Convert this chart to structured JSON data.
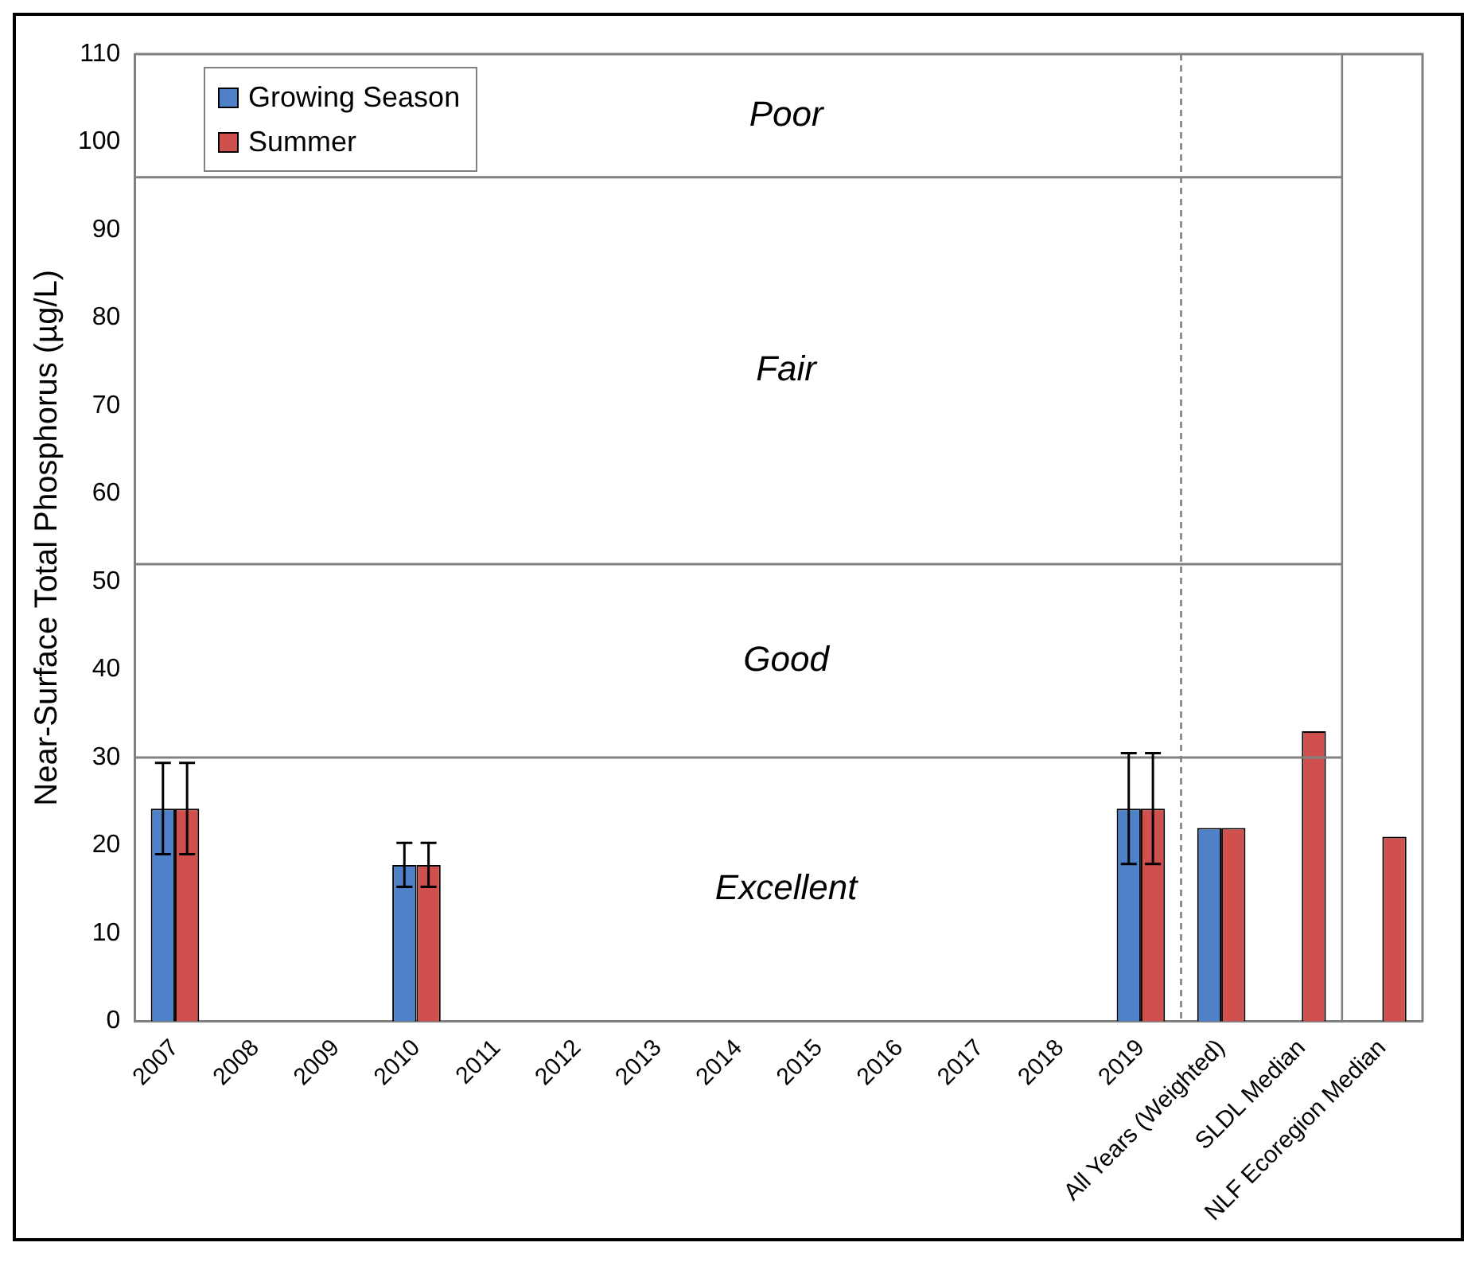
{
  "chart_data": {
    "type": "bar",
    "ylabel": "Near-Surface Total Phosphorus (µg/L)",
    "categories": [
      "2007",
      "2008",
      "2009",
      "2010",
      "2011",
      "2012",
      "2013",
      "2014",
      "2015",
      "2016",
      "2017",
      "2018",
      "2019",
      "All Years (Weighted)",
      "SLDL Median",
      "NLF Ecoregion Median"
    ],
    "series": [
      {
        "name": "Growing Season",
        "color": "#4f81c9",
        "values": [
          24.2,
          null,
          null,
          17.8,
          null,
          null,
          null,
          null,
          null,
          null,
          null,
          null,
          24.2,
          22.0,
          null,
          null
        ],
        "errors": [
          5.2,
          null,
          null,
          2.5,
          null,
          null,
          null,
          null,
          null,
          null,
          null,
          null,
          6.3,
          null,
          null,
          null
        ]
      },
      {
        "name": "Summer",
        "color": "#d0504d",
        "values": [
          24.2,
          null,
          null,
          17.8,
          null,
          null,
          null,
          null,
          null,
          null,
          null,
          null,
          24.2,
          22.0,
          33.0,
          21.0
        ],
        "errors": [
          5.2,
          null,
          null,
          2.5,
          null,
          null,
          null,
          null,
          null,
          null,
          null,
          null,
          6.3,
          null,
          null,
          null
        ]
      }
    ],
    "ylim": [
      0,
      110
    ],
    "yticks": [
      0,
      10,
      20,
      30,
      40,
      50,
      60,
      70,
      80,
      90,
      100,
      110
    ],
    "grid": false,
    "legend": "top left",
    "annotations": [
      "Poor",
      "Fair",
      "Good",
      "Excellent"
    ],
    "ref_lines": [
      {
        "axis": "y",
        "value": 30
      },
      {
        "axis": "y",
        "value": 52
      },
      {
        "axis": "y",
        "value": 96
      },
      {
        "axis": "x",
        "value": "All Years (Weighted)",
        "line_style": "dashed"
      },
      {
        "axis": "x",
        "value": "NLF Ecoregion Median",
        "line_style": "solid"
      }
    ]
  }
}
